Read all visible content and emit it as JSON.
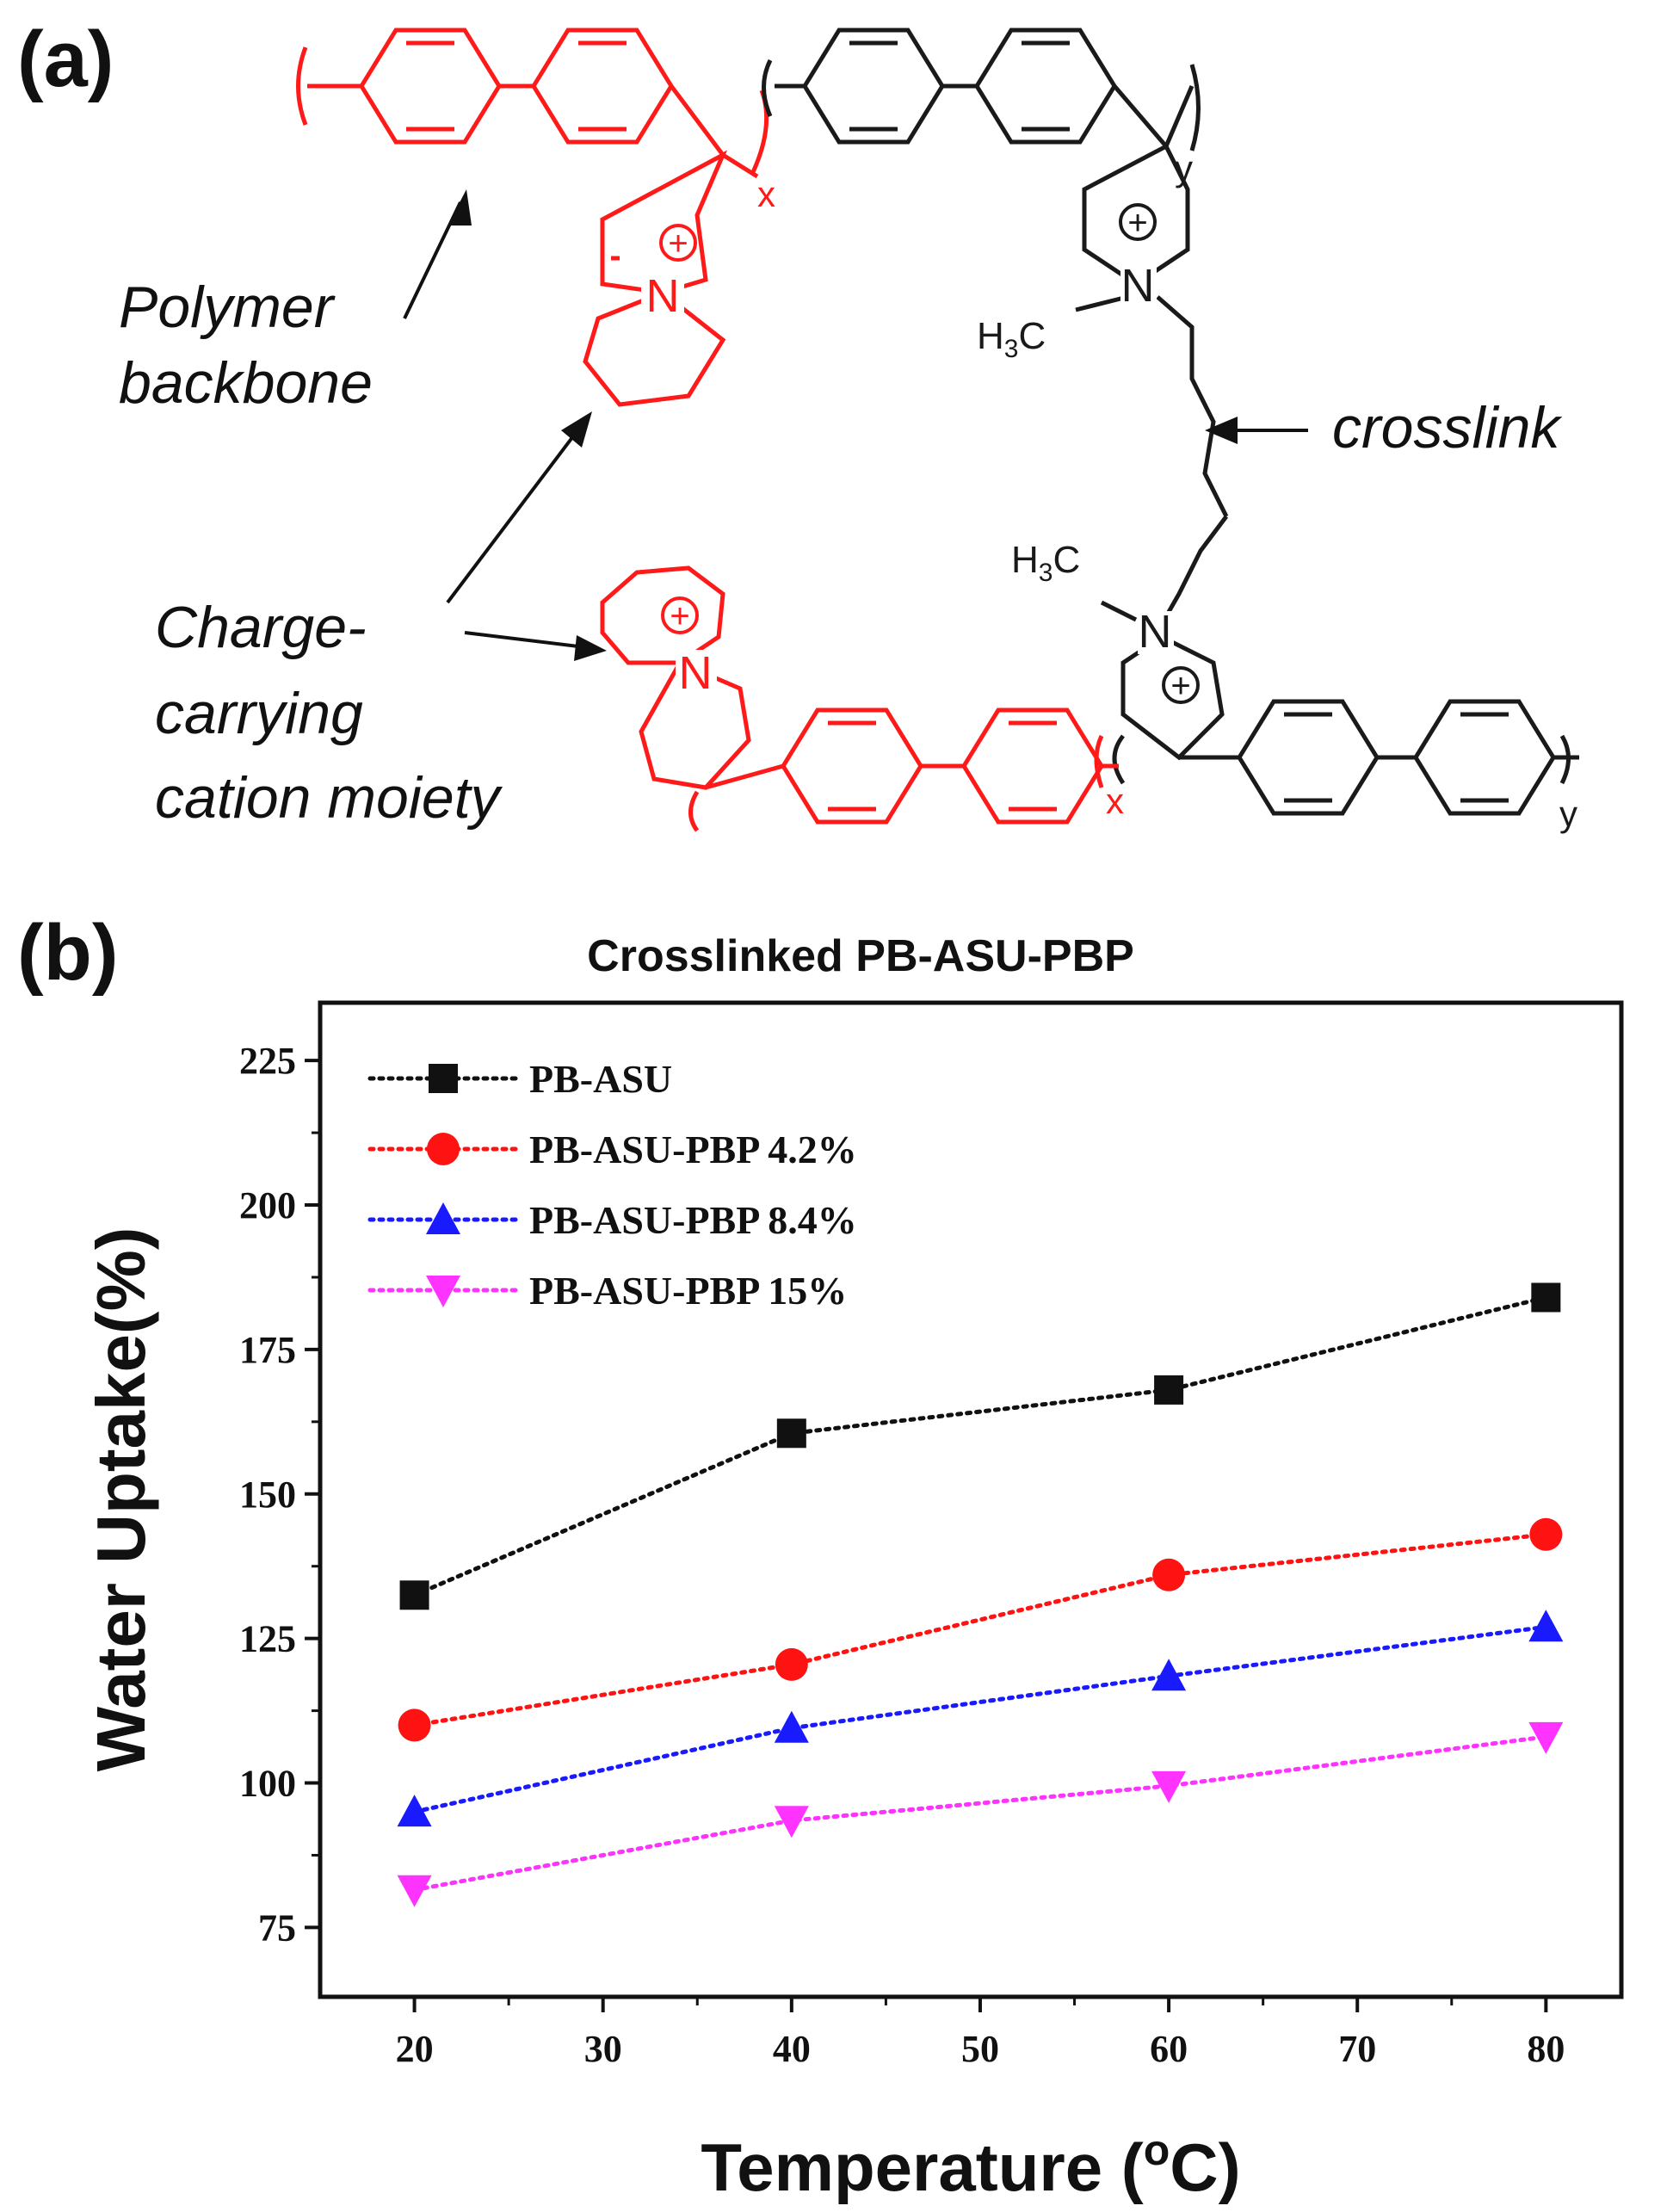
{
  "panel_a": {
    "label": "(a)",
    "annotations": {
      "backbone_line1": "Polymer",
      "backbone_line2": "backbone",
      "cation_line1": "Charge-",
      "cation_line2": "carrying",
      "cation_line3": "cation moiety",
      "crosslink": "crosslink"
    },
    "atoms": {
      "n": "N",
      "plus": "+",
      "methyl_h": "H",
      "methyl_sub": "3",
      "methyl_c": "C"
    },
    "subscripts": {
      "x": "x",
      "y": "y"
    },
    "colors": {
      "red_unit": "#ff1a1a",
      "black_unit": "#1a1a1a"
    }
  },
  "panel_b": {
    "label": "(b)"
  },
  "chart_data": {
    "type": "line",
    "title": "Crosslinked PB-ASU-PBP",
    "xlabel": "Temperature (°C)",
    "xlabel_parts": {
      "pre": "Temperature (",
      "sup": "o",
      "post": "C)"
    },
    "ylabel": "Water Uptake(%)",
    "xlim": [
      15,
      84
    ],
    "ylim": [
      63,
      235
    ],
    "xticks": [
      20,
      30,
      40,
      50,
      60,
      70,
      80
    ],
    "yticks": [
      75,
      100,
      125,
      150,
      175,
      200,
      225
    ],
    "grid": false,
    "legend_position": "top-left",
    "line_style": "dotted",
    "x": [
      20,
      40,
      60,
      80
    ],
    "series": [
      {
        "name": "PB-ASU",
        "values": [
          132.5,
          160.5,
          168,
          184
        ],
        "color": "#111111",
        "marker": "square"
      },
      {
        "name": "PB-ASU-PBP 4.2%",
        "values": [
          110,
          120.5,
          136,
          143
        ],
        "color": "#ff1212",
        "marker": "circle"
      },
      {
        "name": "PB-ASU-PBP 8.4%",
        "values": [
          95,
          109.5,
          118.5,
          127
        ],
        "color": "#1a1aff",
        "marker": "triangle-up"
      },
      {
        "name": "PB-ASU-PBP 15%",
        "values": [
          81.5,
          93.5,
          99.5,
          108
        ],
        "color": "#ff33ff",
        "marker": "triangle-down"
      }
    ]
  }
}
